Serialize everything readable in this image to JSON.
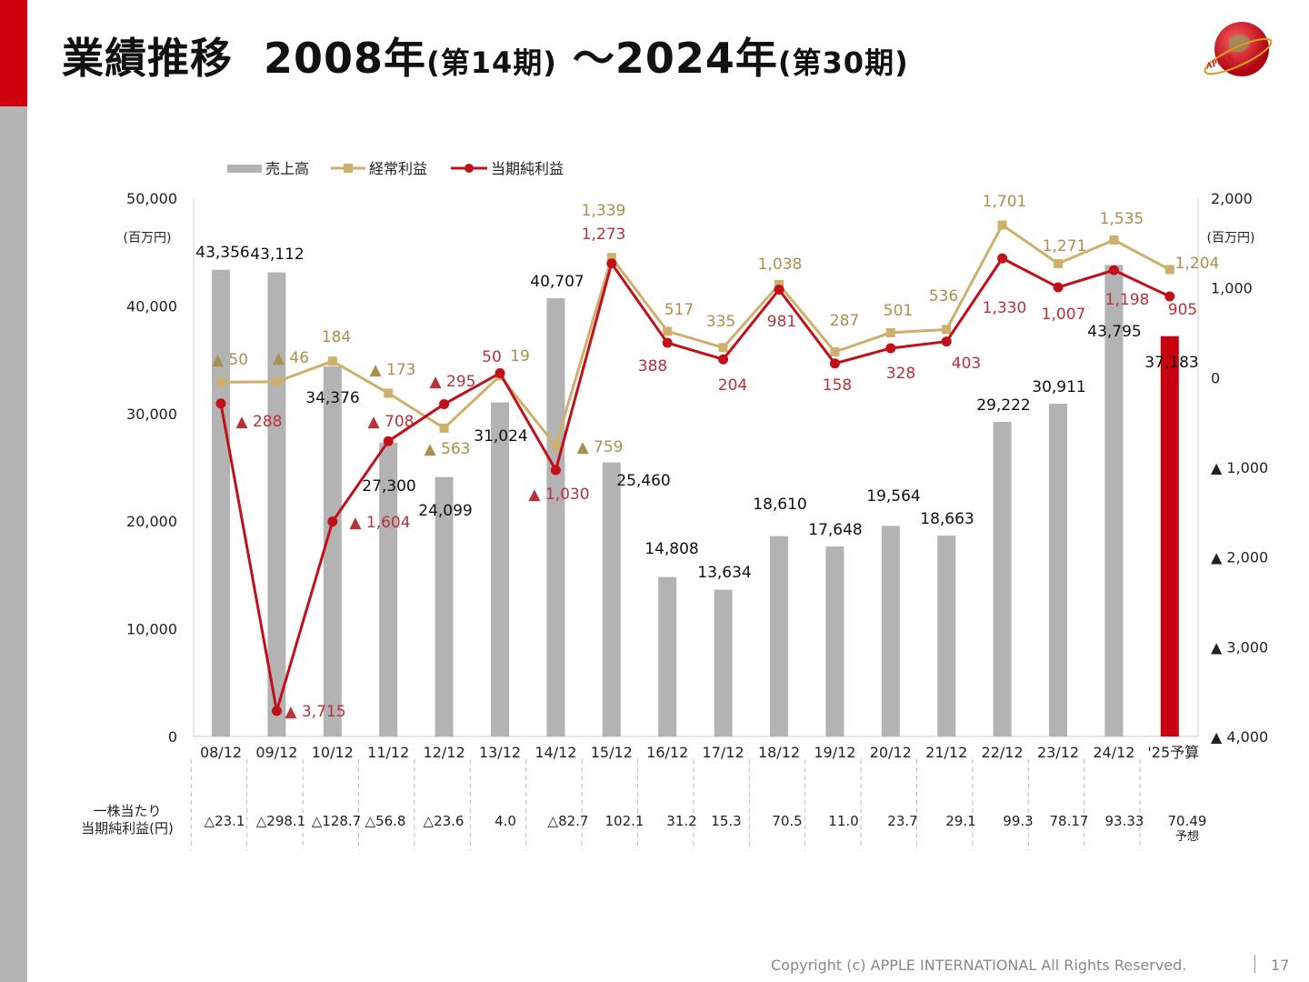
{
  "header": {
    "title_main": "業績推移",
    "title_start_year": "2008年",
    "title_start_period": "(第14期)",
    "title_tilde": "～",
    "title_end_year": "2024年",
    "title_end_period": "(第30期)",
    "logo_text": "APPLE INTERNATIONAL"
  },
  "chart_data": {
    "type": "bar+line",
    "categories": [
      "08/12",
      "09/12",
      "10/12",
      "11/12",
      "12/12",
      "13/12",
      "14/12",
      "15/12",
      "16/12",
      "17/12",
      "18/12",
      "19/12",
      "20/12",
      "21/12",
      "22/12",
      "23/12",
      "24/12",
      "'25予算"
    ],
    "left_axis": {
      "unit": "(百万円)",
      "ylim": [
        0,
        50000
      ],
      "ticks": [
        0,
        10000,
        20000,
        30000,
        40000,
        50000
      ],
      "tick_labels": [
        "0",
        "10,000",
        "20,000",
        "30,000",
        "40,000",
        "50,000"
      ]
    },
    "right_axis": {
      "unit": "(百万円)",
      "ylim": [
        -4000,
        2000
      ],
      "ticks": [
        -4000,
        -3000,
        -2000,
        -1000,
        0,
        1000,
        2000
      ],
      "tick_labels": [
        "▲ 4,000",
        "▲ 3,000",
        "▲ 2,000",
        "▲ 1,000",
        "0",
        "1,000",
        "2,000"
      ]
    },
    "legend_position": "top-left",
    "grid": false,
    "series": [
      {
        "name": "売上高",
        "type": "bar",
        "axis": "left",
        "color": "#b3b3b3",
        "highlight_color": "#c8000f",
        "values": [
          43356,
          43112,
          34376,
          27300,
          24099,
          31024,
          40707,
          25460,
          14808,
          13634,
          18610,
          17648,
          19564,
          18663,
          29222,
          30911,
          43795,
          37183
        ],
        "labels": [
          "43,356",
          "43,112",
          "34,376",
          "27,300",
          "24,099",
          "31,024",
          "40,707",
          "25,460",
          "14,808",
          "13,634",
          "18,610",
          "17,648",
          "19,564",
          "18,663",
          "29,222",
          "30,911",
          "43,795",
          "37,183"
        ]
      },
      {
        "name": "経常利益",
        "type": "line",
        "axis": "right",
        "color": "#cdb06c",
        "marker": "square",
        "values": [
          -50,
          -46,
          184,
          -173,
          -563,
          19,
          -759,
          1339,
          517,
          335,
          1038,
          287,
          501,
          536,
          1701,
          1271,
          1535,
          1204
        ],
        "labels": [
          "▲ 50",
          "▲ 46",
          "184",
          "▲ 173",
          "▲ 563",
          "19",
          "▲ 759",
          "1,339",
          "517",
          "335",
          "1,038",
          "287",
          "501",
          "536",
          "1,701",
          "1,271",
          "1,535",
          "1,204"
        ]
      },
      {
        "name": "当期純利益",
        "type": "line",
        "axis": "right",
        "color": "#c0101a",
        "marker": "circle",
        "values": [
          -288,
          -3715,
          -1604,
          -708,
          -295,
          50,
          -1030,
          1273,
          388,
          204,
          981,
          158,
          328,
          403,
          1330,
          1007,
          1198,
          905
        ],
        "labels": [
          "▲ 288",
          "▲ 3,715",
          "▲ 1,604",
          "▲ 708",
          "▲ 295",
          "50",
          "▲ 1,030",
          "1,273",
          "388",
          "204",
          "981",
          "158",
          "328",
          "403",
          "1,330",
          "1,007",
          "1,198",
          "905"
        ]
      }
    ],
    "eps_row": {
      "label_line1": "一株当たり",
      "label_line2": "当期純利益(円)",
      "values": [
        "△23.1",
        "△298.1",
        "△128.7",
        "△56.8",
        "△23.6",
        "4.0",
        "△82.7",
        "102.1",
        "31.2",
        "15.3",
        "70.5",
        "11.0",
        "23.7",
        "29.1",
        "99.3",
        "78.17",
        "93.33",
        "70.49"
      ],
      "last_note": "予想"
    }
  },
  "footer": {
    "copyright": "Copyright (c) APPLE INTERNATIONAL All Rights Reserved.",
    "page": "17"
  }
}
